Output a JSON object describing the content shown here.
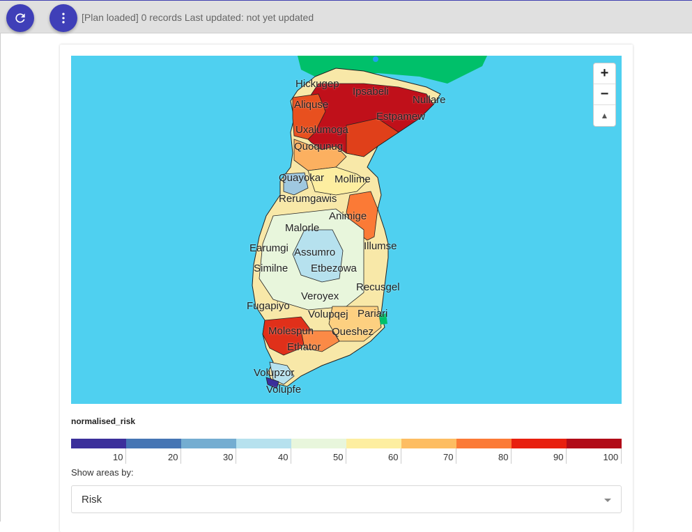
{
  "toolbar": {
    "refresh_icon": "refresh-icon",
    "menu_icon": "more-vertical-icon",
    "status_text": "[Plan loaded] 0 records Last updated: not yet updated"
  },
  "map": {
    "labels": [
      "Hickugep",
      "Ipsabeli",
      "Nullare",
      "Aliquse",
      "Estpamew",
      "Uxalumoga",
      "Quoqunug",
      "Quayokar",
      "Mollime",
      "Rerumgawis",
      "Animige",
      "Malorle",
      "Illumse",
      "Earumgi",
      "Assumro",
      "Similne",
      "Etbezowa",
      "Recusgel",
      "Veroyex",
      "Fugapiyo",
      "Volupqej",
      "Pariari",
      "Molespun",
      "Queshez",
      "Ethator",
      "Volupzor",
      "Volupfe"
    ],
    "zoom_in": "+",
    "zoom_out": "−",
    "reset_north": "▲"
  },
  "legend": {
    "title": "normalised_risk",
    "colors": [
      "#3b2f9b",
      "#4575b4",
      "#74add1",
      "#b6e1ee",
      "#e8f6dc",
      "#fdeea0",
      "#fdbd62",
      "#fb7a36",
      "#e81f0e",
      "#b10b18"
    ],
    "ticks": [
      "10",
      "20",
      "30",
      "40",
      "50",
      "60",
      "70",
      "80",
      "90",
      "100"
    ]
  },
  "controls": {
    "show_by_label": "Show areas by:",
    "show_by_value": "Risk"
  }
}
